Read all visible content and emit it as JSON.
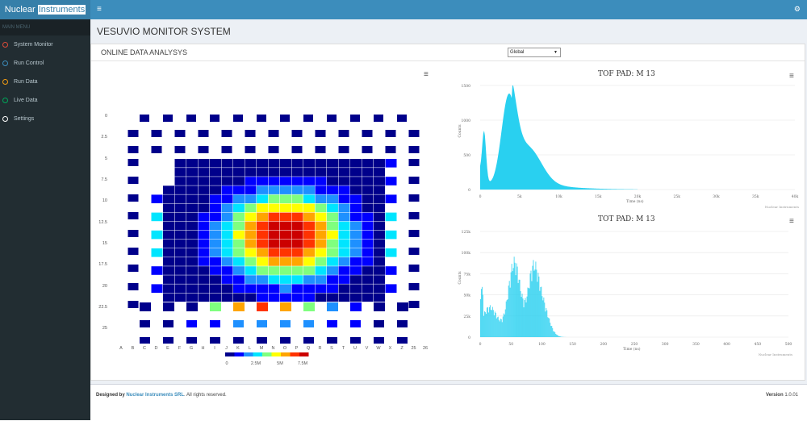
{
  "brand": {
    "part1": "Nuclear ",
    "part2": "Instruments"
  },
  "sidebar": {
    "header": "MAIN MENU",
    "items": [
      {
        "label": "System Monitor",
        "color": "#dd4b39"
      },
      {
        "label": "Run Control",
        "color": "#3c8dbc"
      },
      {
        "label": "Run Data",
        "color": "#f39c12"
      },
      {
        "label": "Live Data",
        "color": "#00a65a"
      },
      {
        "label": "Settings",
        "color": "#ffffff"
      }
    ]
  },
  "header": {
    "page_title": "VESUVIO MONITOR SYSTEM"
  },
  "panel": {
    "subtitle": "ONLINE DATA ANALYSYS",
    "select_value": "Global"
  },
  "heatmap": {
    "x_labels": [
      "A",
      "B",
      "C",
      "D",
      "E",
      "F",
      "G",
      "H",
      "I",
      "J",
      "K",
      "L",
      "M",
      "N",
      "O",
      "P",
      "Q",
      "R",
      "S",
      "T",
      "U",
      "V",
      "W",
      "X",
      "Z",
      "25",
      "26"
    ],
    "y_labels": [
      "0",
      "2.5",
      "5",
      "7.5",
      "10",
      "12.5",
      "15",
      "17.5",
      "20",
      "22.5",
      "25"
    ],
    "colorbar_labels": [
      "0",
      "2.5M",
      "5M",
      "7.5M"
    ],
    "colors": [
      "#00008b",
      "#0000ff",
      "#1e90ff",
      "#00e5ff",
      "#7fff7f",
      "#ffff00",
      "#ffa500",
      "#ff3300",
      "#cc0000"
    ]
  },
  "charts": [
    {
      "title": "TOF PAD: M 13",
      "x_ticks": [
        "0",
        "5k",
        "10k",
        "15k",
        "20k",
        "25k",
        "30k",
        "35k",
        "40k"
      ],
      "y_ticks": [
        "0",
        "500",
        "1000",
        "1500"
      ],
      "xlabel": "Time (ns)",
      "ylabel": "Counts",
      "credit": "Nuclear Instruments",
      "color": "#29d0f0"
    },
    {
      "title": "TOT PAD: M 13",
      "x_ticks": [
        "0",
        "50",
        "100",
        "150",
        "200",
        "250",
        "300",
        "350",
        "400",
        "450",
        "500"
      ],
      "y_ticks": [
        "0",
        "25k",
        "50k",
        "75k",
        "100k",
        "125k"
      ],
      "xlabel": "Time (ns)",
      "ylabel": "Counts",
      "credit": "Nuclear Instruments",
      "color": "#29d0f0"
    }
  ],
  "footer": {
    "designed_by": "Designed by ",
    "company": "Nuclear Instruments SRL",
    "rights": ". All rights reserved.",
    "version_label": "Version",
    "version": "1.0.01"
  }
}
